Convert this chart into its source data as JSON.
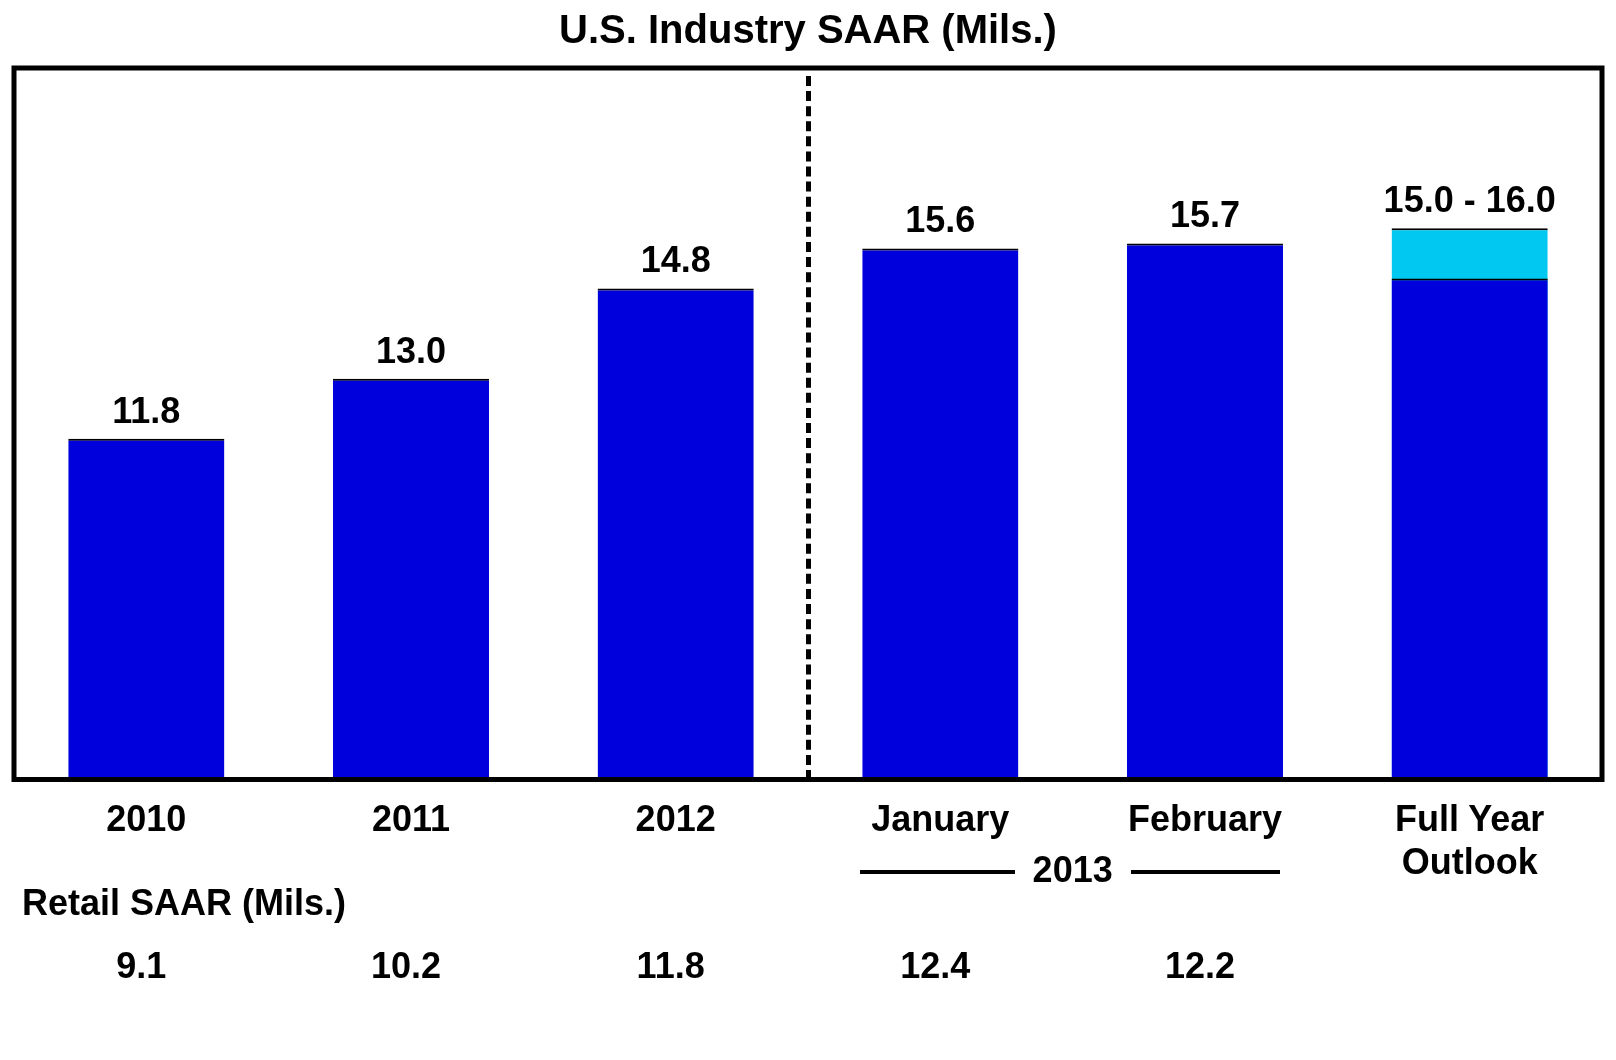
{
  "chart_data": {
    "type": "bar",
    "title": "U.S. Industry SAAR (Mils.)",
    "categories": [
      "2010",
      "2011",
      "2012",
      "January",
      "February",
      "Full Year Outlook"
    ],
    "ylim": [
      5,
      19.2
    ],
    "series": [
      {
        "color": "#00c8f0",
        "values": [
          null,
          null,
          null,
          null,
          null,
          16.0
        ]
      },
      {
        "color": "#0000dd",
        "values": [
          11.8,
          13.0,
          14.8,
          15.6,
          15.7,
          15.0
        ],
        "value_labels": [
          "11.8",
          "13.0",
          "14.8",
          "15.6",
          "15.7",
          null
        ]
      }
    ],
    "annotations": [
      "Retail SAAR (Mils.)",
      "2013",
      "9.1",
      "10.2",
      "11.8",
      "12.4",
      "12.2",
      {
        "text": "15.0 - 16.0",
        "x": "Full Year Outlook",
        "y": 16.0
      }
    ]
  }
}
